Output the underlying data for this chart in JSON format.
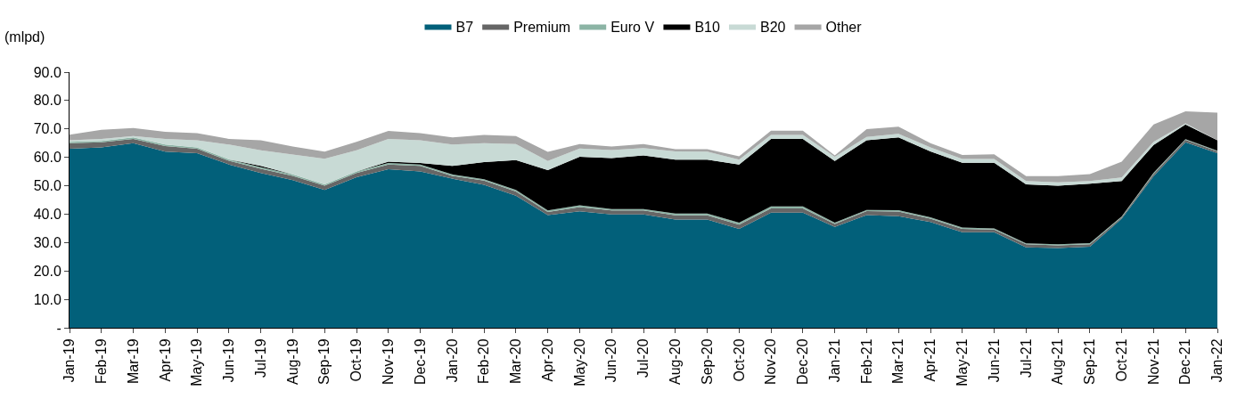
{
  "chart_data": {
    "type": "area",
    "stacked": true,
    "ylabel": "(mlpd)",
    "legend": "top",
    "grid": false,
    "categories": [
      "Jan-19",
      "Feb-19",
      "Mar-19",
      "Apr-19",
      "May-19",
      "Jun-19",
      "Jul-19",
      "Aug-19",
      "Sep-19",
      "Oct-19",
      "Nov-19",
      "Dec-19",
      "Jan-20",
      "Feb-20",
      "Mar-20",
      "Apr-20",
      "May-20",
      "Jun-20",
      "Jul-20",
      "Aug-20",
      "Sep-20",
      "Oct-20",
      "Nov-20",
      "Dec-20",
      "Jan-21",
      "Feb-21",
      "Mar-21",
      "Apr-21",
      "May-21",
      "Jun-21",
      "Jul-21",
      "Aug-21",
      "Sep-21",
      "Oct-21",
      "Nov-21",
      "Dec-21",
      "Jan-22"
    ],
    "ylim": [
      0,
      90
    ],
    "yticks": [
      {
        "value": 0,
        "label": "-"
      },
      {
        "value": 10,
        "label": "10.0"
      },
      {
        "value": 20,
        "label": "20.0"
      },
      {
        "value": 30,
        "label": "30.0"
      },
      {
        "value": 40,
        "label": "40.0"
      },
      {
        "value": 50,
        "label": "50.0"
      },
      {
        "value": 60,
        "label": "60.0"
      },
      {
        "value": 70,
        "label": "70.0"
      },
      {
        "value": 80,
        "label": "80.0"
      },
      {
        "value": 90,
        "label": "90.0"
      }
    ],
    "series": [
      {
        "name": "B7",
        "color": "#02607a",
        "values": [
          63,
          63.5,
          65,
          62,
          61.5,
          57.5,
          54.5,
          52,
          48.5,
          53,
          55.8,
          55,
          52.5,
          50.3,
          46.5,
          39.7,
          41,
          39.9,
          39.9,
          38.1,
          38.1,
          34.8,
          40.5,
          40.5,
          35.5,
          39.7,
          39.3,
          37.2,
          33.6,
          33.6,
          28.3,
          28.1,
          28.5,
          38.4,
          53.4,
          65.3,
          61.5
        ]
      },
      {
        "name": "Premium",
        "color": "#666666",
        "values": [
          2,
          1.8,
          1.5,
          2,
          1.5,
          1.3,
          1.5,
          1.5,
          1.5,
          1.5,
          1.7,
          2,
          1,
          1.5,
          1.5,
          1.1,
          1.5,
          1.4,
          1.4,
          1.5,
          1.5,
          1.5,
          1.5,
          1.5,
          1,
          1.4,
          1.6,
          1.2,
          1.2,
          1,
          1.1,
          0.9,
          0.9,
          0.5,
          0.8,
          0.9,
          0.6
        ]
      },
      {
        "name": "Euro V",
        "color": "#8cb4a5",
        "values": [
          0.5,
          0.5,
          0.5,
          0.5,
          0.5,
          0.5,
          0.5,
          0.5,
          0.5,
          0.5,
          0.5,
          0.5,
          0.5,
          0.5,
          0.5,
          0.5,
          0.6,
          0.5,
          0.5,
          0.6,
          0.6,
          0.7,
          0.7,
          0.7,
          0.5,
          0.4,
          0.5,
          0.5,
          0.5,
          0.4,
          0.3,
          0.4,
          0.4,
          0.3,
          0.4,
          0.2,
          0.2
        ]
      },
      {
        "name": "B10",
        "color": "#000000",
        "values": [
          0,
          0,
          0,
          0,
          0,
          0,
          0.5,
          0,
          0,
          0,
          0.5,
          0.5,
          3,
          6,
          10.5,
          14.2,
          17.1,
          17.9,
          18.9,
          19,
          19,
          20.5,
          23.8,
          23.8,
          21.7,
          24.5,
          25.6,
          23.2,
          22.8,
          23.1,
          20.8,
          20.6,
          20.9,
          12.5,
          9.8,
          5.2,
          3.7
        ]
      },
      {
        "name": "B20",
        "color": "#c8dad5",
        "values": [
          0.5,
          0.7,
          0.5,
          2,
          2.5,
          5.2,
          5.5,
          7,
          9,
          7.5,
          8,
          8,
          7.5,
          6.7,
          5.7,
          3.2,
          2.9,
          2.9,
          2.6,
          2.9,
          2.8,
          1.7,
          1.4,
          1.4,
          1.5,
          1.2,
          1.3,
          1.4,
          1.3,
          1.3,
          1.2,
          1.2,
          1,
          1.2,
          1.1,
          0.4,
          0
        ]
      },
      {
        "name": "Other",
        "color": "#a6a6a6",
        "values": [
          2,
          3.2,
          2.8,
          2.5,
          2.5,
          2,
          3.5,
          2.8,
          2.5,
          3,
          2.8,
          2.5,
          2.5,
          2.9,
          2.8,
          3.2,
          1.6,
          1.2,
          1.4,
          0.8,
          0.9,
          1.2,
          1.5,
          1.5,
          0.5,
          2.7,
          2.5,
          1.5,
          1.4,
          1.7,
          1.7,
          2.2,
          2.4,
          5.6,
          6.1,
          4.2,
          9.7
        ]
      }
    ]
  }
}
